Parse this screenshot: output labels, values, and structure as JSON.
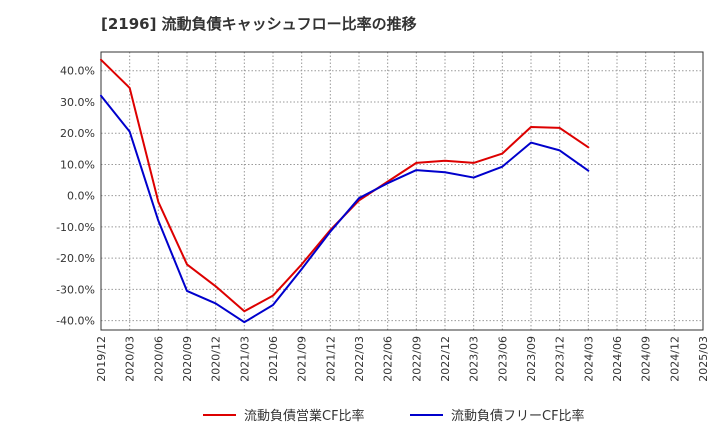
{
  "chart_data": {
    "type": "line",
    "title": "[2196]  流動負債キャッシュフロー比率の推移",
    "xlabel": "",
    "ylabel": "",
    "ylim": [
      -43,
      46
    ],
    "yticks": [
      -40,
      -30,
      -20,
      -10,
      0,
      10,
      20,
      30,
      40
    ],
    "ytick_labels": [
      "-40.0%",
      "-30.0%",
      "-20.0%",
      "-10.0%",
      "0.0%",
      "10.0%",
      "20.0%",
      "30.0%",
      "40.0%"
    ],
    "x": [
      "2019/12",
      "2020/03",
      "2020/06",
      "2020/09",
      "2020/12",
      "2021/03",
      "2021/06",
      "2021/09",
      "2021/12",
      "2022/03",
      "2022/06",
      "2022/09",
      "2022/12",
      "2023/03",
      "2023/06",
      "2023/09",
      "2023/12",
      "2024/03",
      "2024/06",
      "2024/09",
      "2024/12",
      "2025/03"
    ],
    "grid": true,
    "legend_position": "bottom",
    "series": [
      {
        "name": "流動負債営業CF比率",
        "color": "#dd0000",
        "values": [
          43.5,
          34.5,
          -2.0,
          -22.0,
          -29.0,
          -37.0,
          -32.0,
          -22.0,
          -11.0,
          -1.5,
          4.5,
          10.5,
          11.2,
          10.5,
          13.5,
          22.0,
          21.7,
          15.5,
          null,
          null,
          null,
          null
        ]
      },
      {
        "name": "流動負債フリーCF比率",
        "color": "#0000cc",
        "values": [
          32.0,
          20.5,
          -8.0,
          -30.5,
          -34.5,
          -40.5,
          -35.0,
          -23.5,
          -11.5,
          -0.8,
          4.0,
          8.2,
          7.5,
          5.8,
          9.3,
          17.0,
          14.5,
          8.0,
          null,
          null,
          null,
          null
        ]
      }
    ]
  }
}
